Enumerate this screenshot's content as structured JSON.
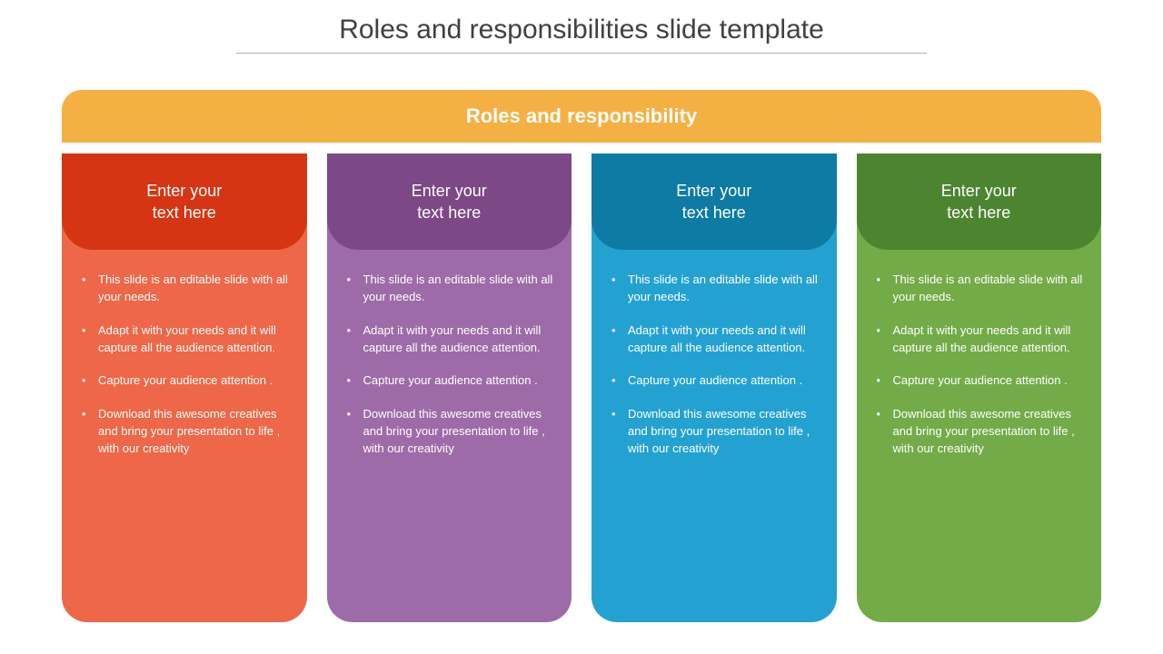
{
  "title": "Roles and responsibilities slide template",
  "banner": {
    "text": "Roles and responsibility",
    "bg_color": "#f5b043"
  },
  "columns": [
    {
      "header_text": "Enter your\ntext here",
      "header_bg": "#d53513",
      "body_bg": "#ee6748",
      "bullets": [
        "This slide is an editable slide with all your needs.",
        "Adapt it with your needs and it will capture all the audience attention.",
        "Capture your audience attention .",
        "Download this awesome creatives and bring your presentation to life , with our creativity"
      ]
    },
    {
      "header_text": "Enter your\ntext here",
      "header_bg": "#7d4886",
      "body_bg": "#9d6ba7",
      "bullets": [
        "This slide is an editable slide with all your needs.",
        "Adapt it with your needs and it will capture all the audience attention.",
        "Capture your audience attention .",
        "Download this awesome creatives and bring your presentation to life , with our creativity"
      ]
    },
    {
      "header_text": "Enter your\ntext here",
      "header_bg": "#0d7ba3",
      "body_bg": "#23a2d2",
      "bullets": [
        "This slide is an editable slide with all your needs.",
        "Adapt it with your needs and it will capture all the audience attention.",
        "Capture your audience attention .",
        "Download this awesome creatives and bring your presentation to life , with our creativity"
      ]
    },
    {
      "header_text": "Enter your\ntext here",
      "header_bg": "#4d8430",
      "body_bg": "#72ab48",
      "bullets": [
        "This slide is an editable slide with all your needs.",
        "Adapt it with your needs and it will capture all the audience attention.",
        "Capture your audience attention .",
        "Download this awesome creatives and bring your presentation to life , with our creativity"
      ]
    }
  ]
}
